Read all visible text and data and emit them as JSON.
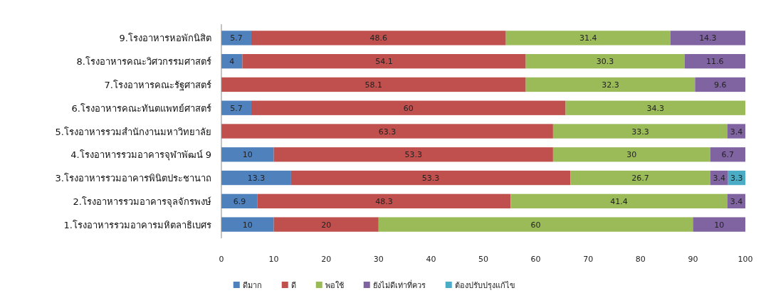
{
  "chart_data": {
    "type": "bar",
    "orientation": "horizontal",
    "stacked": true,
    "data_labels": true,
    "legend": "bottom",
    "categories": [
      "9.โรงอาหารหอพักนิสิต",
      "8.โรงอาหารคณะวิศวกรรมศาสตร์",
      "7.โรงอาหารคณะรัฐศาสตร์",
      "6.โรงอาหารคณะทันตแพทย์ศาสตร์",
      "5.โรงอาหารรวมสำนักงานมหาวิทยาลัย",
      "4.โรงอาหารรวมอาคารจุฬาพัฒน์ 9",
      "3.โรงอาหารรวมอาคารพินิตประชานาถ",
      "2.โรงอาหารรวมอาคารจุลจักรพงษ์",
      "1.โรงอาหารรวมอาคารมหิตลาธิเบศร"
    ],
    "series": [
      {
        "name": "ดีมาก",
        "color": "#4f81bd",
        "values": [
          5.7,
          4,
          null,
          5.7,
          null,
          10,
          13.3,
          6.9,
          10
        ]
      },
      {
        "name": "ดี",
        "color": "#c0504d",
        "values": [
          48.6,
          54.1,
          58.1,
          60,
          63.3,
          53.3,
          53.3,
          48.3,
          20
        ]
      },
      {
        "name": "พอใช้",
        "color": "#9bbb59",
        "values": [
          31.4,
          30.3,
          32.3,
          34.3,
          33.3,
          30,
          26.7,
          41.4,
          60
        ]
      },
      {
        "name": "ยังไม่ดีเท่าที่ควร",
        "color": "#8064a2",
        "values": [
          14.3,
          11.6,
          9.6,
          null,
          3.4,
          6.7,
          3.4,
          3.4,
          10
        ]
      },
      {
        "name": "ต้องปรับปรุงแก้ไข",
        "color": "#4bacc6",
        "values": [
          null,
          null,
          null,
          null,
          null,
          null,
          3.3,
          null,
          null
        ]
      }
    ],
    "xlim": [
      0,
      100
    ],
    "xticks": [
      0,
      10,
      20,
      30,
      40,
      50,
      60,
      70,
      80,
      90,
      100
    ]
  }
}
